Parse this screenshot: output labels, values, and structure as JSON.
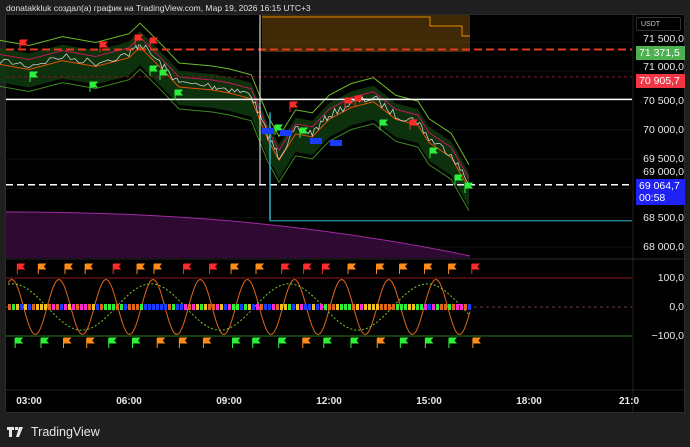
{
  "caption": "donatakkluk создал(а) график на TradingView.com, Мар 19, 2026 16:15 UTC+3",
  "currency": "USDT",
  "price_axis": [
    "71 500,0",
    "71 000,0",
    "70 500,0",
    "70 000,0",
    "69 500,0",
    "69 000,0",
    "68 500,0",
    "68 000,0"
  ],
  "price_axis_values": [
    71500,
    71000,
    70500,
    70000,
    69500,
    69000,
    68500,
    68000
  ],
  "price_tags": {
    "high": {
      "label": "71 371,5",
      "color": "#4caf50",
      "value": 71371.5
    },
    "level": {
      "label": "70 905,7",
      "color": "#f23645",
      "value": 70905.7
    },
    "last": {
      "label": "69 064,7",
      "countdown": "00:58",
      "color": "#1e22f5",
      "value": 69064.7
    }
  },
  "indicator_axis": [
    "100,0",
    "0,0",
    "−100,0"
  ],
  "indicator_axis_values": [
    100,
    0,
    -100
  ],
  "time_axis": [
    "03:00",
    "06:00",
    "09:00",
    "12:00",
    "15:00",
    "18:00",
    "21:0"
  ],
  "price_series": [
    [
      "02:00",
      71200
    ],
    [
      "03:00",
      71100
    ],
    [
      "04:00",
      71250
    ],
    [
      "05:00",
      71150
    ],
    [
      "06:00",
      71300
    ],
    [
      "06:20",
      71480
    ],
    [
      "07:00",
      71100
    ],
    [
      "07:30",
      70800
    ],
    [
      "08:30",
      70750
    ],
    [
      "09:00",
      70700
    ],
    [
      "09:40",
      70600
    ],
    [
      "10:10",
      69900
    ],
    [
      "10:30",
      69550
    ],
    [
      "11:00",
      70000
    ],
    [
      "11:30",
      69950
    ],
    [
      "12:00",
      70250
    ],
    [
      "12:40",
      70450
    ],
    [
      "13:20",
      70550
    ],
    [
      "14:00",
      70250
    ],
    [
      "14:40",
      70150
    ],
    [
      "15:00",
      69850
    ],
    [
      "15:40",
      69600
    ],
    [
      "16:12",
      69064.7
    ]
  ],
  "footer": {
    "brand": "TradingView"
  }
}
